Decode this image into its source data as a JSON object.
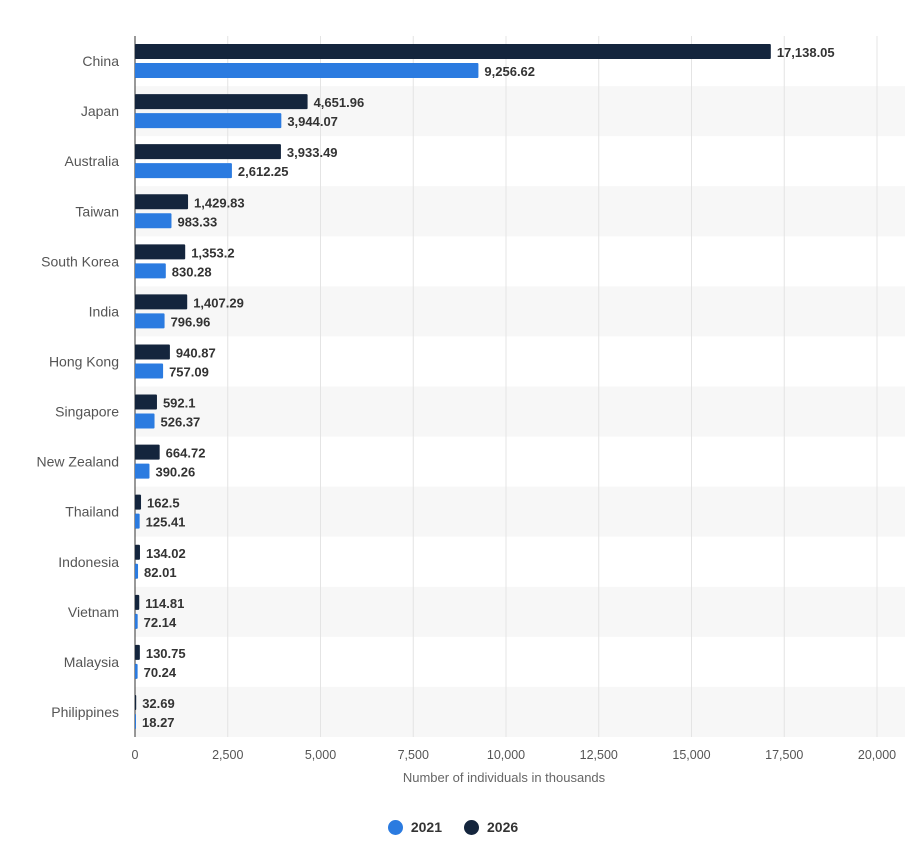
{
  "chart_data": {
    "type": "bar",
    "orientation": "horizontal",
    "categories": [
      "China",
      "Japan",
      "Australia",
      "Taiwan",
      "South Korea",
      "India",
      "Hong Kong",
      "Singapore",
      "New Zealand",
      "Thailand",
      "Indonesia",
      "Vietnam",
      "Malaysia",
      "Philippines"
    ],
    "series": [
      {
        "name": "2026",
        "color": "#14253d",
        "values": [
          17138.05,
          4651.96,
          3933.49,
          1429.83,
          1353.2,
          1407.29,
          940.87,
          592.1,
          664.72,
          162.5,
          134.02,
          114.81,
          130.75,
          32.69
        ],
        "labels": [
          "17,138.05",
          "4,651.96",
          "3,933.49",
          "1,429.83",
          "1,353.2",
          "1,407.29",
          "940.87",
          "592.1",
          "664.72",
          "162.5",
          "134.02",
          "114.81",
          "130.75",
          "32.69"
        ]
      },
      {
        "name": "2021",
        "color": "#2b7be0",
        "values": [
          9256.62,
          3944.07,
          2612.25,
          983.33,
          830.28,
          796.96,
          757.09,
          526.37,
          390.26,
          125.41,
          82.01,
          72.14,
          70.24,
          18.27
        ],
        "labels": [
          "9,256.62",
          "3,944.07",
          "2,612.25",
          "983.33",
          "830.28",
          "796.96",
          "757.09",
          "526.37",
          "390.26",
          "125.41",
          "82.01",
          "72.14",
          "70.24",
          "18.27"
        ]
      }
    ],
    "xlabel": "Number of individuals in thousands",
    "xlim": [
      0,
      20000
    ],
    "ticks": [
      0,
      2500,
      5000,
      7500,
      10000,
      12500,
      15000,
      17500,
      20000
    ],
    "tick_labels": [
      "0",
      "2,500",
      "5,000",
      "7,500",
      "10,000",
      "12,500",
      "15,000",
      "17,500",
      "20,000"
    ],
    "grid": true,
    "legend_position": "bottom-center"
  },
  "legend": {
    "items": [
      {
        "label": "2021",
        "color": "#2b7be0"
      },
      {
        "label": "2026",
        "color": "#14253d"
      }
    ]
  }
}
